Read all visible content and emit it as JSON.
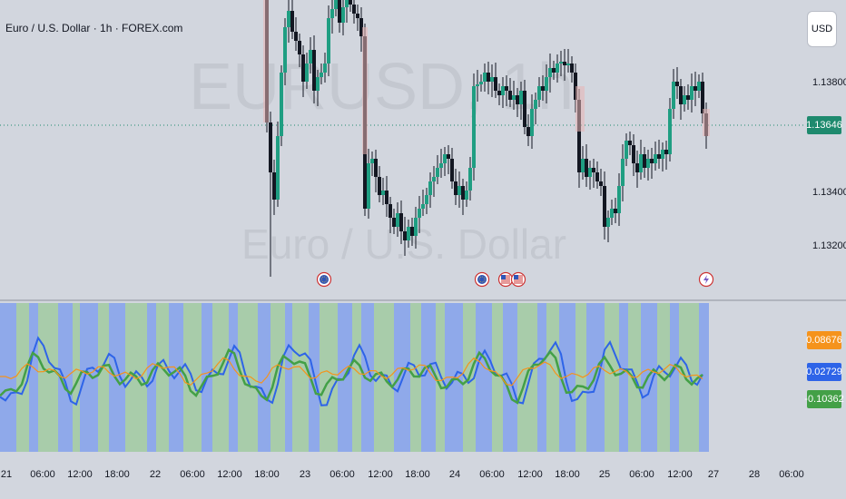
{
  "symbol": {
    "title": "Euro / U.S. Dollar · 1h · FOREX.com"
  },
  "watermark": {
    "symbol": "EURUSD, 1h",
    "name": "Euro / U.S. Dollar"
  },
  "currency_button": {
    "label": "USD"
  },
  "price_axis": {
    "ticks": [
      "1.13800",
      "1.13400",
      "1.13200"
    ],
    "current_price": "1.13646",
    "current_price_color": "#1e8a6e"
  },
  "indicator_values": [
    {
      "value": "0.08676",
      "color": "#f5931c"
    },
    {
      "value": "0.02729",
      "color": "#2e64e8"
    },
    {
      "value": "-0.10362",
      "color": "#43a047"
    }
  ],
  "time_axis": {
    "ticks": [
      "21",
      "06:00",
      "12:00",
      "18:00",
      "22",
      "06:00",
      "12:00",
      "18:00",
      "23",
      "06:00",
      "12:00",
      "18:00",
      "24",
      "06:00",
      "12:00",
      "18:00",
      "25",
      "06:00",
      "12:00",
      "27",
      "28",
      "06:00"
    ]
  },
  "event_markers": [
    {
      "icon": "eu-flag-icon"
    },
    {
      "icon": "eu-flag-icon"
    },
    {
      "icon": "us-flag-icon"
    },
    {
      "icon": "us-flag-icon"
    },
    {
      "icon": "lightning-icon"
    }
  ],
  "colors": {
    "up_candle": "#1f9e82",
    "down_candle": "#131722",
    "wick": "#131722",
    "bg": "#d2d6de",
    "indicator_blue_zone": "#8fa9ea",
    "indicator_green_zone": "#a8ccaa"
  }
}
